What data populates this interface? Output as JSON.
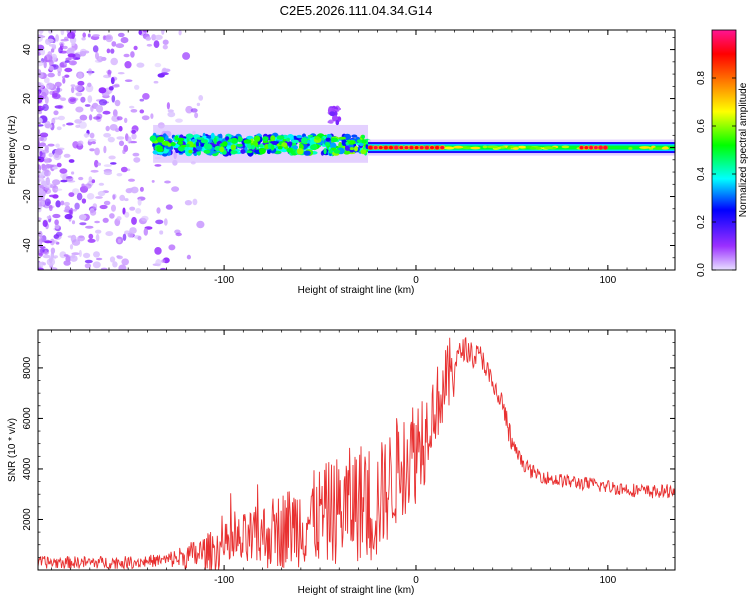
{
  "title": "C2E5.2026.111.04.34.G14",
  "chart_data": [
    {
      "type": "heatmap",
      "xlabel": "Height of straight line (km)",
      "ylabel": "Frequency (Hz)",
      "xlim": [
        -197,
        135
      ],
      "ylim": [
        -50,
        48
      ],
      "xticks": [
        -100,
        0,
        100
      ],
      "yticks": [
        -40,
        -20,
        0,
        20,
        40
      ],
      "colorbar": {
        "label": "Normalized spectral amplitude",
        "range": [
          0,
          1
        ],
        "ticks": [
          "0.0",
          "0.2",
          "0.4",
          "0.6",
          "0.8"
        ],
        "colors": [
          "#e8e0ff",
          "#9b30ff",
          "#0000ff",
          "#00ffff",
          "#00ff00",
          "#ffff00",
          "#ff8000",
          "#ff0000",
          "#ff1493"
        ]
      },
      "features": [
        {
          "name": "noise",
          "x_range": [
            -197,
            -110
          ],
          "freq_range": [
            -50,
            48
          ],
          "typical_amplitude": 0.1
        },
        {
          "name": "signal-band-noisy",
          "x_range": [
            -137,
            -25
          ],
          "freq_range": [
            -5,
            8
          ],
          "typical_amplitude": 0.4
        },
        {
          "name": "bump",
          "x_range": [
            -45,
            -40
          ],
          "freq_range": [
            10,
            16
          ],
          "typical_amplitude": 0.1
        },
        {
          "name": "signal-band-stable",
          "x_range": [
            -25,
            135
          ],
          "freq_range": [
            -2,
            2
          ],
          "typical_amplitude": 0.6
        },
        {
          "name": "peak-cluster",
          "x_range": [
            -25,
            15
          ],
          "freq_range": [
            -1,
            1
          ],
          "typical_amplitude": 0.95
        },
        {
          "name": "peak-cluster",
          "x_range": [
            85,
            100
          ],
          "freq_range": [
            -1,
            1
          ],
          "typical_amplitude": 0.9
        }
      ]
    },
    {
      "type": "line",
      "xlabel": "Height of straight line (km)",
      "ylabel": "SNR (10 * v/v)",
      "xlim": [
        -197,
        135
      ],
      "ylim": [
        0,
        9500
      ],
      "xticks": [
        -100,
        0,
        100
      ],
      "yticks": [
        2000,
        4000,
        6000,
        8000
      ],
      "color": "#e83030",
      "series": [
        {
          "name": "SNR",
          "x": [
            -197,
            -170,
            -150,
            -130,
            -115,
            -100,
            -85,
            -70,
            -55,
            -40,
            -30,
            -22,
            -15,
            -8,
            0,
            5,
            10,
            15,
            20,
            25,
            30,
            35,
            40,
            45,
            50,
            55,
            60,
            70,
            80,
            90,
            100,
            110,
            120,
            130,
            135
          ],
          "values": [
            300,
            300,
            300,
            400,
            600,
            900,
            1200,
            1600,
            2000,
            2400,
            2700,
            2600,
            3200,
            4200,
            4800,
            5600,
            6500,
            7200,
            8200,
            8800,
            8500,
            8400,
            7200,
            6600,
            5000,
            4300,
            3900,
            3600,
            3500,
            3400,
            3300,
            3200,
            3100,
            3100,
            3200
          ]
        }
      ]
    }
  ]
}
